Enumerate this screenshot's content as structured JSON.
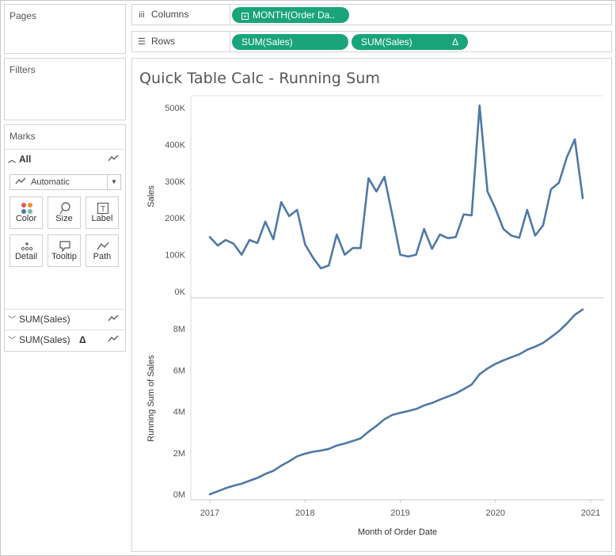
{
  "pages_card": {
    "title": "Pages"
  },
  "filters_card": {
    "title": "Filters"
  },
  "marks_card": {
    "title": "Marks",
    "all_label": "All",
    "mark_type": "Automatic",
    "buttons": [
      {
        "label": "Color",
        "icon": "color-dots-icon"
      },
      {
        "label": "Size",
        "icon": "size-lasso-icon"
      },
      {
        "label": "Label",
        "icon": "label-t-icon"
      },
      {
        "label": "Detail",
        "icon": "detail-dots-icon"
      },
      {
        "label": "Tooltip",
        "icon": "tooltip-bubble-icon"
      },
      {
        "label": "Path",
        "icon": "path-line-icon"
      }
    ],
    "measures": [
      {
        "label": "SUM(Sales)",
        "delta": ""
      },
      {
        "label": "SUM(Sales)",
        "delta": "Δ"
      }
    ]
  },
  "shelves": {
    "columns": {
      "label": "Columns",
      "icon": "columns-icon",
      "pill": "MONTH(Order Da.."
    },
    "rows": {
      "label": "Rows",
      "icon": "rows-icon",
      "pills": [
        {
          "text": "SUM(Sales)",
          "delta": ""
        },
        {
          "text": "SUM(Sales)",
          "delta": "Δ"
        }
      ]
    }
  },
  "colors": {
    "pill": "#1aa47a",
    "line": "#4e79a7"
  },
  "viz": {
    "title": "Quick Table Calc - Running Sum"
  },
  "chart_data": [
    {
      "type": "line",
      "title": "Quick Table Calc - Running Sum",
      "ylabel": "Sales",
      "xlabel": "Month of Order Date",
      "x_ticks": [
        "2017",
        "2018",
        "2019",
        "2020",
        "2021"
      ],
      "y_ticks": [
        "0K",
        "100K",
        "200K",
        "300K",
        "400K",
        "500K"
      ],
      "ylim": [
        0,
        540000
      ],
      "grid": false,
      "series": [
        {
          "values": [
            148000,
            125000,
            140000,
            130000,
            100000,
            140000,
            132000,
            190000,
            142000,
            243000,
            205000,
            222000,
            128000,
            92000,
            63000,
            71000,
            155000,
            100000,
            118000,
            118000,
            308000,
            272000,
            312000,
            208000,
            100000,
            95000,
            100000,
            170000,
            116000,
            155000,
            145000,
            148000,
            210000,
            207000,
            506000,
            272000,
            225000,
            170000,
            152000,
            146000,
            222000,
            152000,
            180000,
            278000,
            296000,
            365000,
            414000,
            254000
          ]
        }
      ]
    },
    {
      "type": "line",
      "ylabel": "Running Sum of Sales",
      "xlabel": "Month of Order Date",
      "x_ticks": [
        "2017",
        "2018",
        "2019",
        "2020",
        "2021"
      ],
      "y_ticks": [
        "0M",
        "2M",
        "4M",
        "6M",
        "8M"
      ],
      "ylim": [
        0,
        9200000
      ],
      "grid": false,
      "series": [
        {
          "values": [
            0,
            140000,
            290000,
            410000,
            510000,
            650000,
            790000,
            980000,
            1130000,
            1380000,
            1590000,
            1830000,
            1960000,
            2050000,
            2110000,
            2190000,
            2350000,
            2450000,
            2570000,
            2700000,
            3020000,
            3300000,
            3620000,
            3830000,
            3930000,
            4020000,
            4120000,
            4290000,
            4410000,
            4570000,
            4720000,
            4870000,
            5080000,
            5300000,
            5800000,
            6080000,
            6300000,
            6470000,
            6620000,
            6760000,
            6980000,
            7130000,
            7310000,
            7590000,
            7880000,
            8250000,
            8670000,
            8930000
          ]
        }
      ]
    }
  ]
}
